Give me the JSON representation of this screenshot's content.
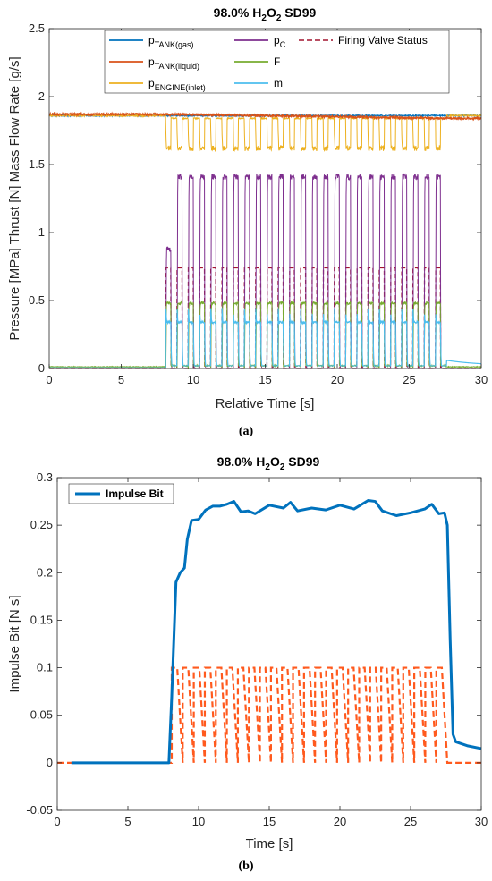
{
  "chart_data": [
    {
      "type": "line",
      "title": "98.0% H2O2 SD99",
      "caption": "(a)",
      "xlabel": "Relative Time [s]",
      "ylabel": "Pressure [MPa] Thrust [N] Mass Flow Rate [g/s]",
      "xlim": [
        0,
        30
      ],
      "ylim": [
        0,
        2.5
      ],
      "xticks": [
        "0",
        "5",
        "10",
        "15",
        "20",
        "25",
        "30"
      ],
      "yticks": [
        "0",
        "0.5",
        "1",
        "1.5",
        "2",
        "2.5"
      ],
      "grid": false,
      "legend_position": "top",
      "pulses": {
        "start": 8.1,
        "end": 27.6,
        "count": 25,
        "on_duty": 0.45
      },
      "series": [
        {
          "name": "p",
          "sub": "TANK(gas)",
          "color": "#0072BD",
          "style": "solid",
          "level": 1.86
        },
        {
          "name": "p",
          "sub": "TANK(liquid)",
          "color": "#D95319",
          "style": "solid",
          "level": 1.87,
          "level_after": 1.84
        },
        {
          "name": "p",
          "sub": "ENGINE(inlet)",
          "color": "#EDB120",
          "style": "solid",
          "level": 1.86,
          "pulse_low": 1.62
        },
        {
          "name": "p",
          "sub": "C",
          "color": "#7E2F8E",
          "style": "solid",
          "pulse_high": 1.41
        },
        {
          "name": "F",
          "sub": "",
          "color": "#77AC30",
          "style": "solid",
          "pulse_high": 0.48
        },
        {
          "name": "m",
          "sub": "",
          "color": "#4DBEEE",
          "style": "solid",
          "pulse_high": 0.34
        },
        {
          "name": "Firing Valve Status",
          "sub": "",
          "color": "#A2142F",
          "style": "dashed",
          "pulse_high": 0.74
        }
      ]
    },
    {
      "type": "line",
      "title": "98.0% H2O2 SD99",
      "caption": "(b)",
      "xlabel": "Time [s]",
      "ylabel": "Impulse Bit [N s]",
      "xlim": [
        0,
        30
      ],
      "ylim": [
        -0.05,
        0.3
      ],
      "xticks": [
        "0",
        "5",
        "10",
        "15",
        "20",
        "25",
        "30"
      ],
      "yticks": [
        "-0.05",
        "0",
        "0.05",
        "0.1",
        "0.15",
        "0.2",
        "0.25",
        "0.3"
      ],
      "grid": false,
      "legend_position": "top-left",
      "series": [
        {
          "name": "Impulse Bit",
          "color": "#0072BD",
          "style": "solid",
          "x": [
            1.0,
            7.9,
            8.1,
            8.4,
            8.7,
            9.0,
            9.2,
            9.5,
            10.0,
            10.5,
            11.0,
            11.5,
            12.0,
            12.5,
            13.0,
            13.5,
            14.0,
            15.0,
            16.0,
            16.5,
            17.0,
            18.0,
            19.0,
            20.0,
            21.0,
            22.0,
            22.5,
            23.0,
            24.0,
            25.0,
            26.0,
            26.5,
            27.0,
            27.4,
            27.6,
            27.8,
            28.0,
            28.2,
            29.0,
            30.0
          ],
          "y": [
            0.0,
            0.0,
            0.07,
            0.19,
            0.2,
            0.205,
            0.235,
            0.255,
            0.256,
            0.266,
            0.27,
            0.27,
            0.272,
            0.275,
            0.264,
            0.265,
            0.262,
            0.271,
            0.268,
            0.274,
            0.265,
            0.268,
            0.266,
            0.271,
            0.267,
            0.276,
            0.275,
            0.265,
            0.26,
            0.263,
            0.267,
            0.272,
            0.262,
            0.263,
            0.25,
            0.13,
            0.03,
            0.022,
            0.018,
            0.015
          ]
        },
        {
          "name": "",
          "color": "#FF5A1E",
          "style": "dashed",
          "pulse_start": 8.1,
          "pulse_end": 27.6,
          "pulse_count": 25,
          "pulse_high": 0.1,
          "baseline_from": 0
        }
      ]
    }
  ]
}
